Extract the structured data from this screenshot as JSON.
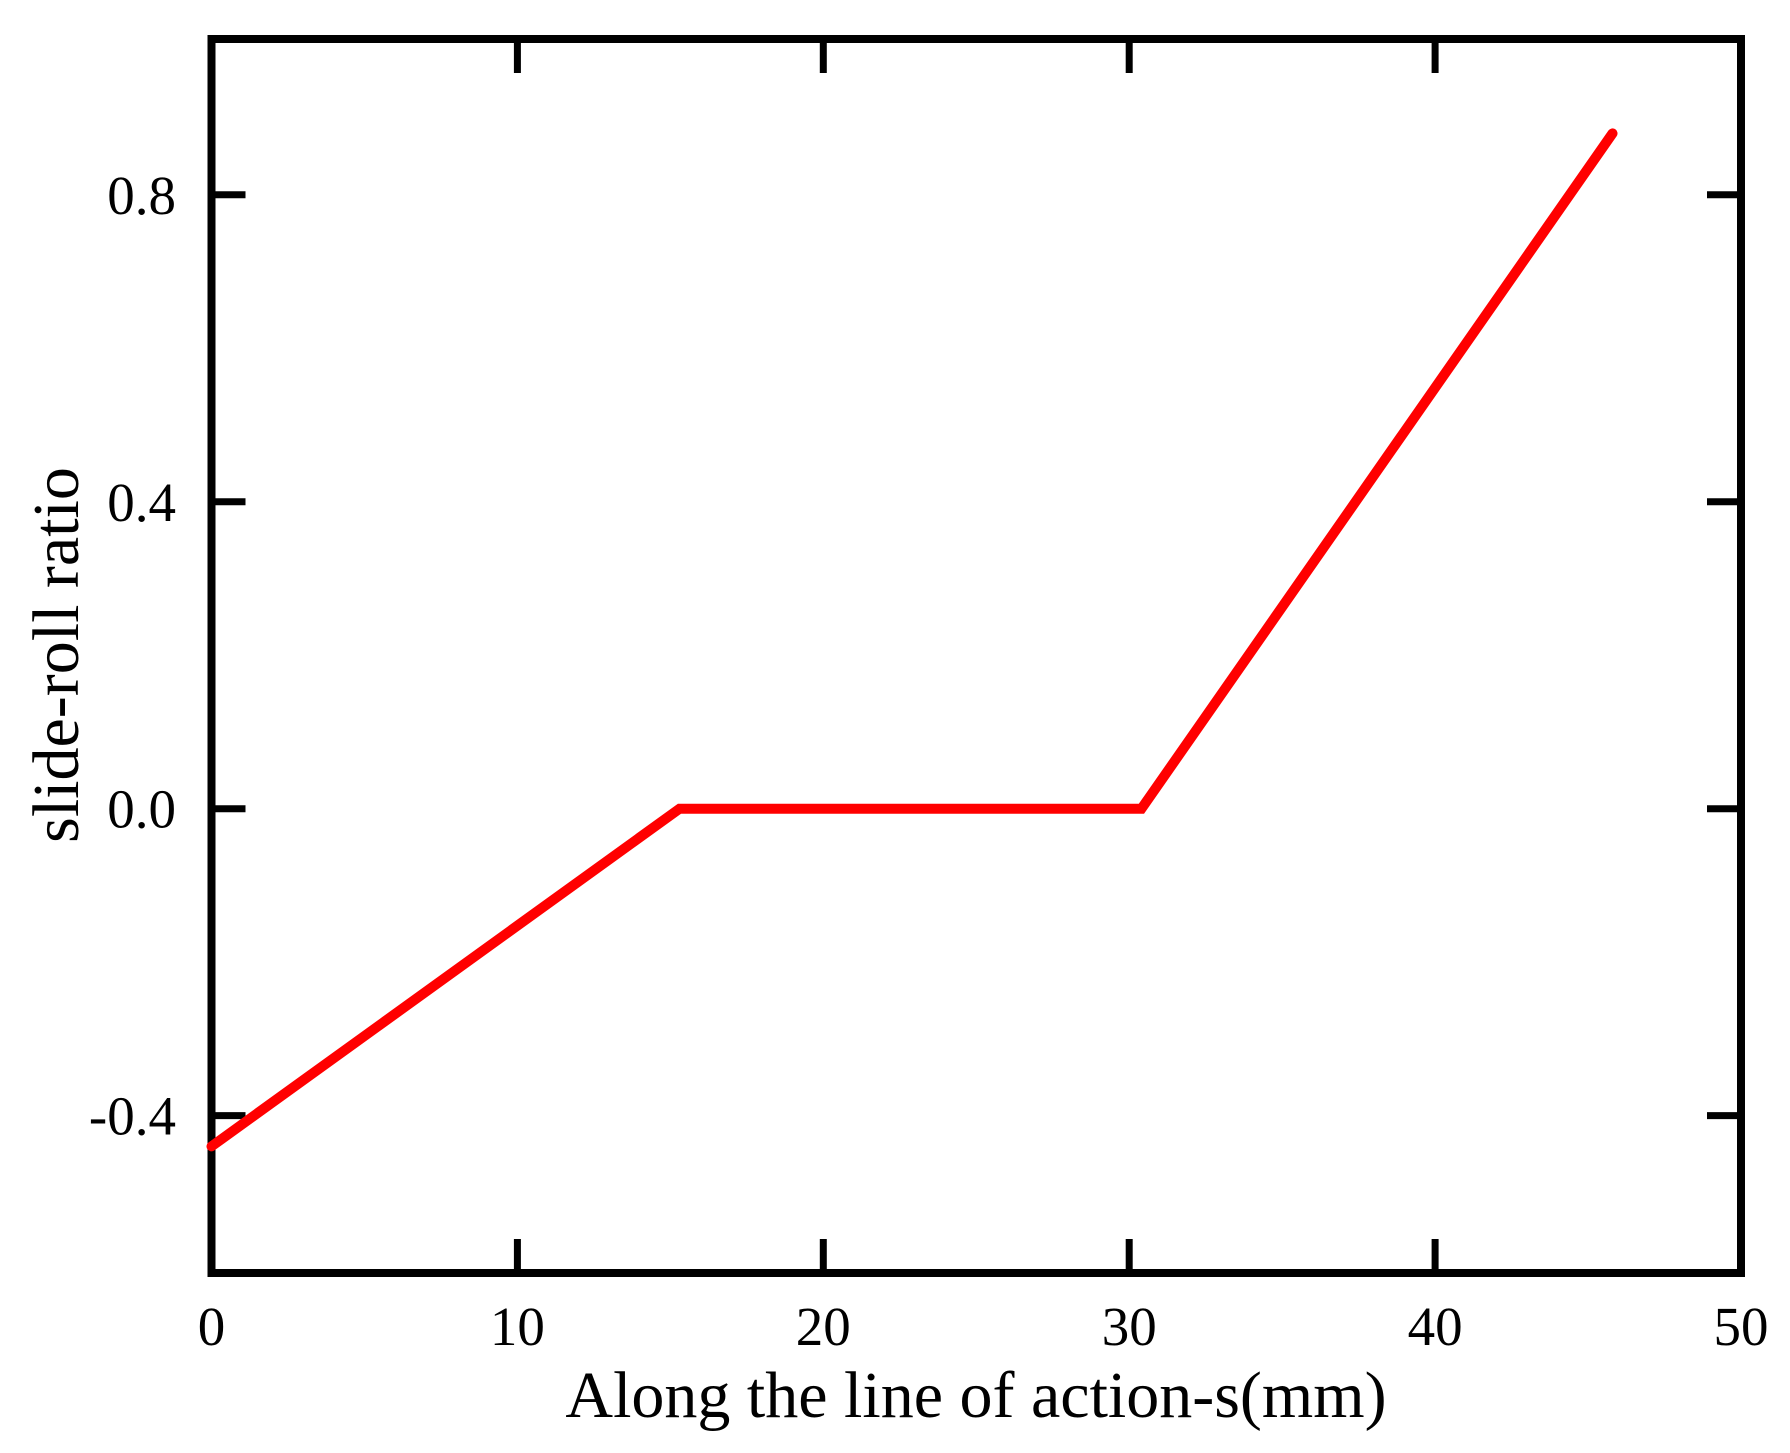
{
  "chart_data": {
    "type": "line",
    "title": "",
    "xlabel": "Along the line of action-s(mm)",
    "ylabel": "slide-roll ratio",
    "xlim": [
      0,
      50
    ],
    "ylim": [
      -0.605,
      1.003
    ],
    "x_ticks": [
      0,
      10,
      20,
      30,
      40,
      50
    ],
    "x_tick_labels": [
      "0",
      "10",
      "20",
      "30",
      "40",
      "50"
    ],
    "y_ticks": [
      -0.4,
      0.0,
      0.4,
      0.8
    ],
    "y_tick_labels": [
      "-0.4",
      "0.0",
      "0.4",
      "0.8"
    ],
    "grid": false,
    "legend": "none",
    "background": "#ffffff",
    "frame_color": "#000000",
    "series": [
      {
        "name": "slide-roll ratio",
        "color": "#ff0000",
        "points": [
          [
            0,
            -0.44
          ],
          [
            15.3,
            0.0
          ],
          [
            30.4,
            0.0
          ],
          [
            45.8,
            0.88
          ]
        ]
      }
    ]
  }
}
